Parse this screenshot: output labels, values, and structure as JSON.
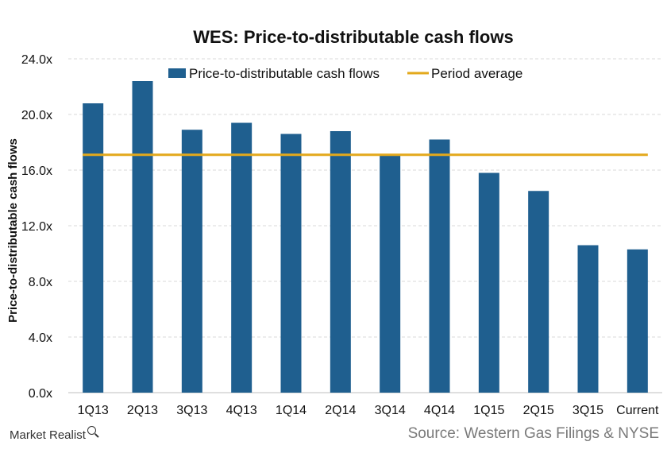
{
  "chart_data": {
    "type": "bar",
    "title": "WES: Price-to-distributable cash flows",
    "ylabel": "Price-to-distributable cash flows",
    "xlabel": "",
    "categories": [
      "1Q13",
      "2Q13",
      "3Q13",
      "4Q13",
      "1Q14",
      "2Q14",
      "3Q14",
      "4Q14",
      "1Q15",
      "2Q15",
      "3Q15",
      "Current"
    ],
    "series": [
      {
        "name": "Price-to-distributable cash flows",
        "type": "bar",
        "color": "#1f5f8f",
        "values": [
          20.8,
          22.4,
          18.9,
          19.4,
          18.6,
          18.8,
          17.1,
          18.2,
          15.8,
          14.5,
          10.6,
          10.3
        ]
      },
      {
        "name": "Period average",
        "type": "line",
        "color": "#e3a91c",
        "values": [
          17.1,
          17.1,
          17.1,
          17.1,
          17.1,
          17.1,
          17.1,
          17.1,
          17.1,
          17.1,
          17.1,
          17.1
        ]
      }
    ],
    "ylim": [
      0,
      24
    ],
    "yticks": [
      0,
      4,
      8,
      12,
      16,
      20,
      24
    ],
    "ytick_labels": [
      "0.0x",
      "4.0x",
      "8.0x",
      "12.0x",
      "16.0x",
      "20.0x",
      "24.0x"
    ],
    "grid": "horizontal dashed",
    "legend_position": "top-center"
  },
  "footer": {
    "brand": "Market Realist",
    "brand_icon": "magnifier-icon",
    "source": "Source: Western Gas Filings & NYSE"
  }
}
